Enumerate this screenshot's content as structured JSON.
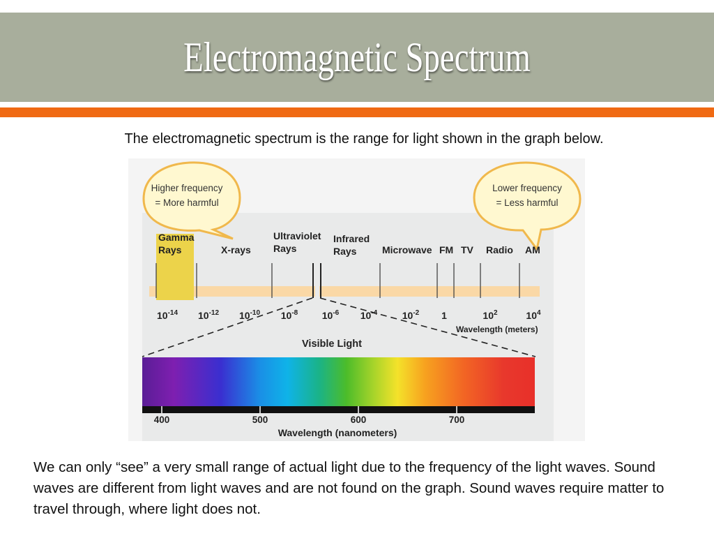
{
  "slide": {
    "title": "Electromagnetic Spectrum",
    "intro": "The electromagnetic spectrum  is the range for light shown in the graph below.",
    "body": "We can only “see” a very small range of actual light due to the frequency of the light waves. Sound waves are different from light waves and are not found on the graph. Sound waves require matter to travel through, where light does not.",
    "accent_color": "#f06a13",
    "title_band_color": "#a8ae9c"
  },
  "diagram": {
    "callout_left": {
      "line1": "Higher frequency",
      "line2": "= More harmful"
    },
    "callout_right": {
      "line1": "Lower frequency",
      "line2": "= Less harmful"
    },
    "bands": {
      "gamma_line1": "Gamma",
      "gamma_line2": "Rays",
      "xrays": "X-rays",
      "uv_line1": "Ultraviolet",
      "uv_line2": "Rays",
      "ir_line1": "Infrared",
      "ir_line2": "Rays",
      "microwave": "Microwave",
      "fm": "FM",
      "tv": "TV",
      "radio": "Radio",
      "am": "AM"
    },
    "scale_ticks": [
      {
        "base": "10",
        "exp": "-14"
      },
      {
        "base": "10",
        "exp": "-12"
      },
      {
        "base": "10",
        "exp": "-10"
      },
      {
        "base": "10",
        "exp": "-8"
      },
      {
        "base": "10",
        "exp": "-6"
      },
      {
        "base": "10",
        "exp": "-4"
      },
      {
        "base": "10",
        "exp": "-2"
      },
      {
        "base": "1",
        "exp": ""
      },
      {
        "base": "10",
        "exp": "2"
      },
      {
        "base": "10",
        "exp": "4"
      }
    ],
    "scale_unit": "Wavelength (meters)",
    "visible_title": "Visible Light",
    "nm_ticks": [
      "400",
      "500",
      "600",
      "700"
    ],
    "nm_unit": "Wavelength (nanometers)",
    "colors": {
      "band_strip": "#fad8a6",
      "gamma_highlight": "#ecd34a",
      "callout_fill": "#fff8d0",
      "callout_stroke": "#f0b84c"
    }
  }
}
